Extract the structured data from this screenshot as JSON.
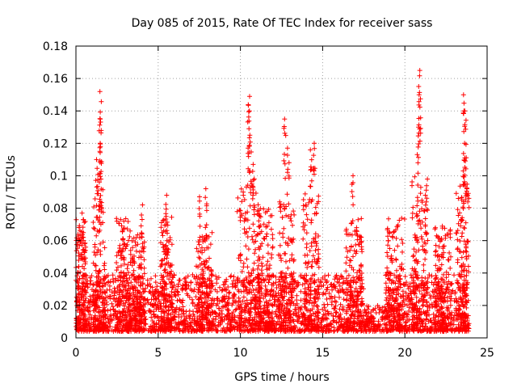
{
  "chart_data": {
    "type": "scatter",
    "title": "Day 085 of 2015, Rate Of TEC Index for receiver sass",
    "xlabel": "GPS time / hours",
    "ylabel": "ROTI / TECUs",
    "xlim": [
      0,
      25
    ],
    "ylim": [
      0,
      0.18
    ],
    "x_ticks": [
      0,
      5,
      10,
      15,
      20,
      25
    ],
    "x_tick_labels": [
      "0",
      "5",
      "10",
      "15",
      "20",
      "25"
    ],
    "y_ticks": [
      0,
      0.02,
      0.04,
      0.06,
      0.08,
      0.1,
      0.12,
      0.14,
      0.16,
      0.18
    ],
    "y_tick_labels": [
      "0",
      "0.02",
      "0.04",
      "0.06",
      "0.08",
      "0.1",
      "0.12",
      "0.14",
      "0.16",
      "0.18"
    ],
    "grid": true,
    "marker": "plus",
    "color": "#ff0000",
    "series": [
      {
        "name": "ROTI",
        "peaks": [
          {
            "x": 0.2,
            "y": 0.066
          },
          {
            "x": 0.4,
            "y": 0.077
          },
          {
            "x": 1.3,
            "y": 0.11
          },
          {
            "x": 1.5,
            "y": 0.152
          },
          {
            "x": 1.45,
            "y": 0.135
          },
          {
            "x": 1.5,
            "y": 0.12
          },
          {
            "x": 2.9,
            "y": 0.072
          },
          {
            "x": 4.0,
            "y": 0.082
          },
          {
            "x": 5.5,
            "y": 0.088
          },
          {
            "x": 7.5,
            "y": 0.087
          },
          {
            "x": 7.9,
            "y": 0.092
          },
          {
            "x": 10.5,
            "y": 0.149
          },
          {
            "x": 10.5,
            "y": 0.14
          },
          {
            "x": 10.6,
            "y": 0.125
          },
          {
            "x": 10.8,
            "y": 0.107
          },
          {
            "x": 12.7,
            "y": 0.135
          },
          {
            "x": 12.9,
            "y": 0.117
          },
          {
            "x": 14.5,
            "y": 0.12
          },
          {
            "x": 14.3,
            "y": 0.116
          },
          {
            "x": 16.8,
            "y": 0.1
          },
          {
            "x": 20.9,
            "y": 0.165
          },
          {
            "x": 20.9,
            "y": 0.15
          },
          {
            "x": 20.8,
            "y": 0.13
          },
          {
            "x": 21.3,
            "y": 0.088
          },
          {
            "x": 23.6,
            "y": 0.15
          },
          {
            "x": 23.7,
            "y": 0.14
          },
          {
            "x": 23.6,
            "y": 0.12
          },
          {
            "x": 23.5,
            "y": 0.103
          }
        ],
        "bursts": [
          {
            "center": 0.25,
            "width": 0.35,
            "max": 0.068
          },
          {
            "center": 1.4,
            "width": 0.35,
            "max": 0.095
          },
          {
            "center": 2.9,
            "width": 0.45,
            "max": 0.07
          },
          {
            "center": 3.8,
            "width": 0.4,
            "max": 0.06
          },
          {
            "center": 5.5,
            "width": 0.35,
            "max": 0.07
          },
          {
            "center": 7.8,
            "width": 0.5,
            "max": 0.06
          },
          {
            "center": 10.5,
            "width": 0.7,
            "max": 0.09
          },
          {
            "center": 11.5,
            "width": 0.5,
            "max": 0.075
          },
          {
            "center": 12.8,
            "width": 0.5,
            "max": 0.08
          },
          {
            "center": 14.3,
            "width": 0.5,
            "max": 0.085
          },
          {
            "center": 16.9,
            "width": 0.5,
            "max": 0.07
          },
          {
            "center": 19.4,
            "width": 0.6,
            "max": 0.07
          },
          {
            "center": 20.9,
            "width": 0.5,
            "max": 0.095
          },
          {
            "center": 22.3,
            "width": 0.5,
            "max": 0.065
          },
          {
            "center": 23.5,
            "width": 0.4,
            "max": 0.09
          }
        ],
        "baseline": {
          "xmin": 0,
          "xmax": 23.9,
          "typical_max": 0.035,
          "quiet_window": [
            17.5,
            18.8
          ]
        }
      }
    ]
  }
}
